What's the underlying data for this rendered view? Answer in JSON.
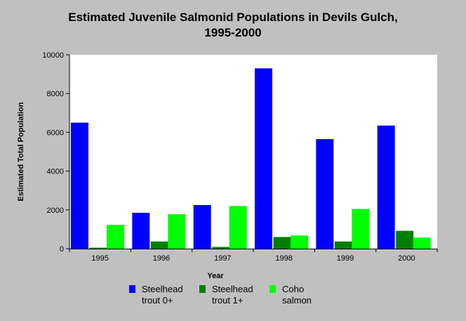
{
  "chart_data": {
    "type": "bar",
    "title": "Estimated Juvenile Salmonid Populations in Devils Gulch,\n1995-2000",
    "xlabel": "Year",
    "ylabel": "Estimated Total Population",
    "categories": [
      "1995",
      "1996",
      "1997",
      "1998",
      "1999",
      "2000"
    ],
    "ylim": [
      0,
      10000
    ],
    "yticks": [
      0,
      2000,
      4000,
      6000,
      8000,
      10000
    ],
    "grid": false,
    "legend_position": "bottom",
    "series": [
      {
        "name": "Steelhead trout 0+",
        "legend_label": "Steelhead\ntrout 0+",
        "color": "#0000ff",
        "values": [
          6500,
          1850,
          2250,
          9300,
          5650,
          6350
        ]
      },
      {
        "name": "Steelhead trout 1+",
        "legend_label": "Steelhead\ntrout 1+",
        "color": "#008000",
        "values": [
          50,
          370,
          90,
          600,
          370,
          920
        ]
      },
      {
        "name": "Coho salmon",
        "legend_label": "Coho\nsalmon",
        "color": "#00ff00",
        "values": [
          1230,
          1780,
          2200,
          680,
          2050,
          570
        ]
      }
    ]
  }
}
